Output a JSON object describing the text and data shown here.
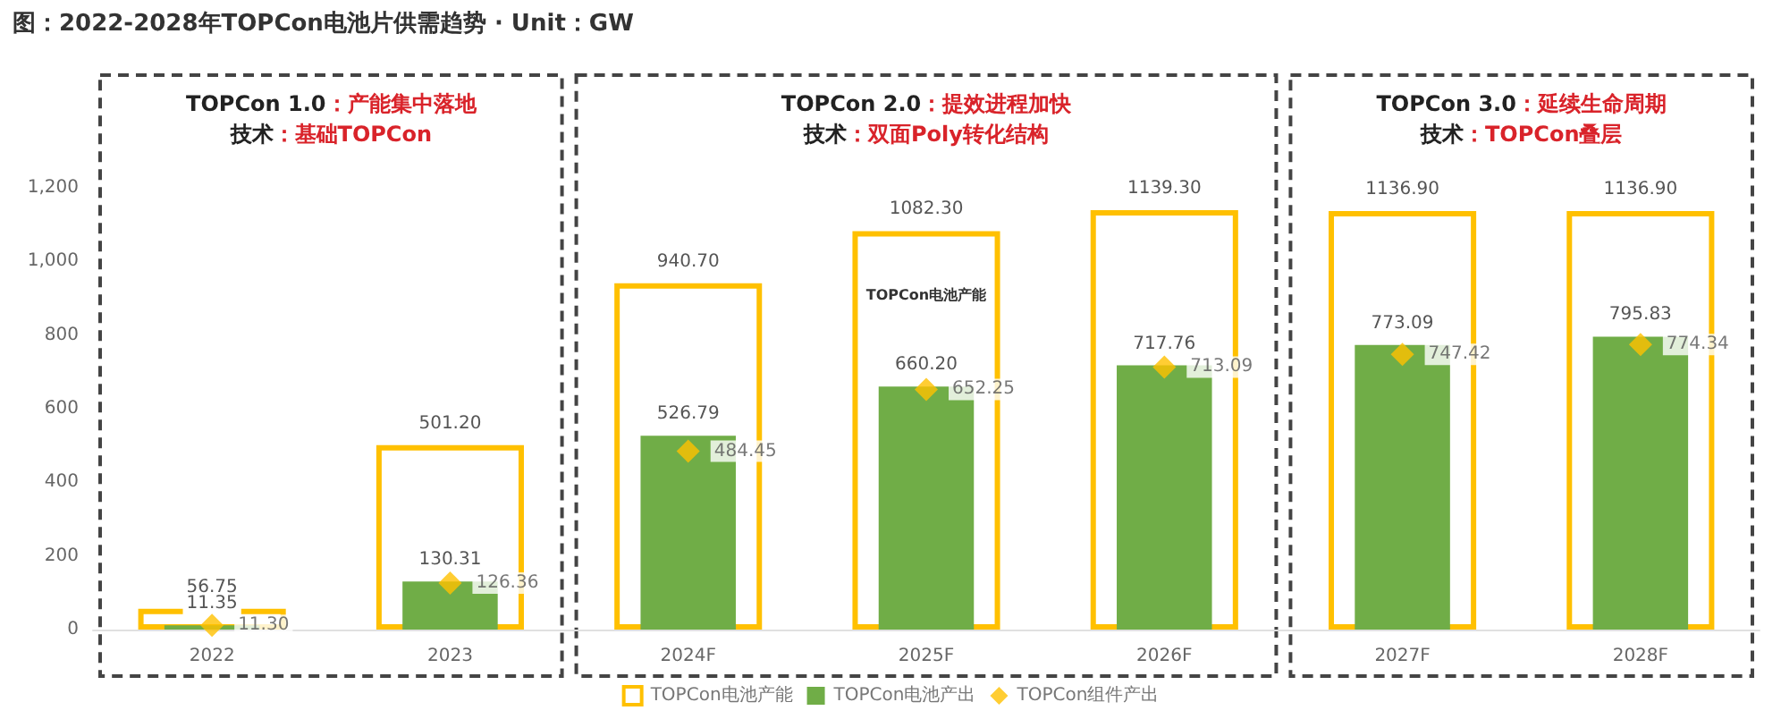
{
  "chart_data": {
    "type": "bar",
    "title": "图：2022-2028年TOPCon电池片供需趋势 · Unit：GW",
    "categories": [
      "2022",
      "2023",
      "2024F",
      "2025F",
      "2026F",
      "2027F",
      "2028F"
    ],
    "series": [
      {
        "name": "TOPCon电池产能",
        "color": "#ffc000",
        "values": [
          56.75,
          501.2,
          940.7,
          1082.3,
          1139.3,
          1136.9,
          1136.9
        ],
        "value_labels": [
          "56.75",
          "501.20",
          "940.70",
          "1082.30",
          "1139.30",
          "1136.90",
          "1136.90"
        ]
      },
      {
        "name": "TOPCon电池产出",
        "color": "#70ad47",
        "values": [
          11.35,
          130.31,
          526.79,
          660.2,
          717.76,
          773.09,
          795.83
        ],
        "value_labels": [
          "11.35",
          "130.31",
          "526.79",
          "660.20",
          "717.76",
          "773.09",
          "795.83"
        ]
      },
      {
        "name": "TOPCon组件产出",
        "type": "scatter",
        "color": "#ffc000",
        "marker": "diamond",
        "values": [
          11.3,
          126.36,
          484.45,
          652.25,
          713.09,
          747.42,
          774.34
        ],
        "value_labels": [
          "11.30",
          "126.36",
          "484.45",
          "652.25",
          "713.09",
          "747.42",
          "774.34"
        ]
      }
    ],
    "annotations": [
      "TOPCon 1.0：产能集中落地",
      "技术：基础TOPCon",
      "TOPCon 2.0：提效进程加快",
      "技术：双面Poly转化结构",
      "TOPCon 3.0：延续生命周期",
      "技术：TOPCon叠层",
      "TOPCon电池产能"
    ],
    "ylim": [
      0,
      1200
    ],
    "yticks": [
      0,
      200,
      400,
      600,
      800,
      {
        "value": 1000,
        "label": "1,000"
      },
      {
        "value": 1200,
        "label": "1,200"
      }
    ],
    "grid": false,
    "legend": "bottom"
  }
}
